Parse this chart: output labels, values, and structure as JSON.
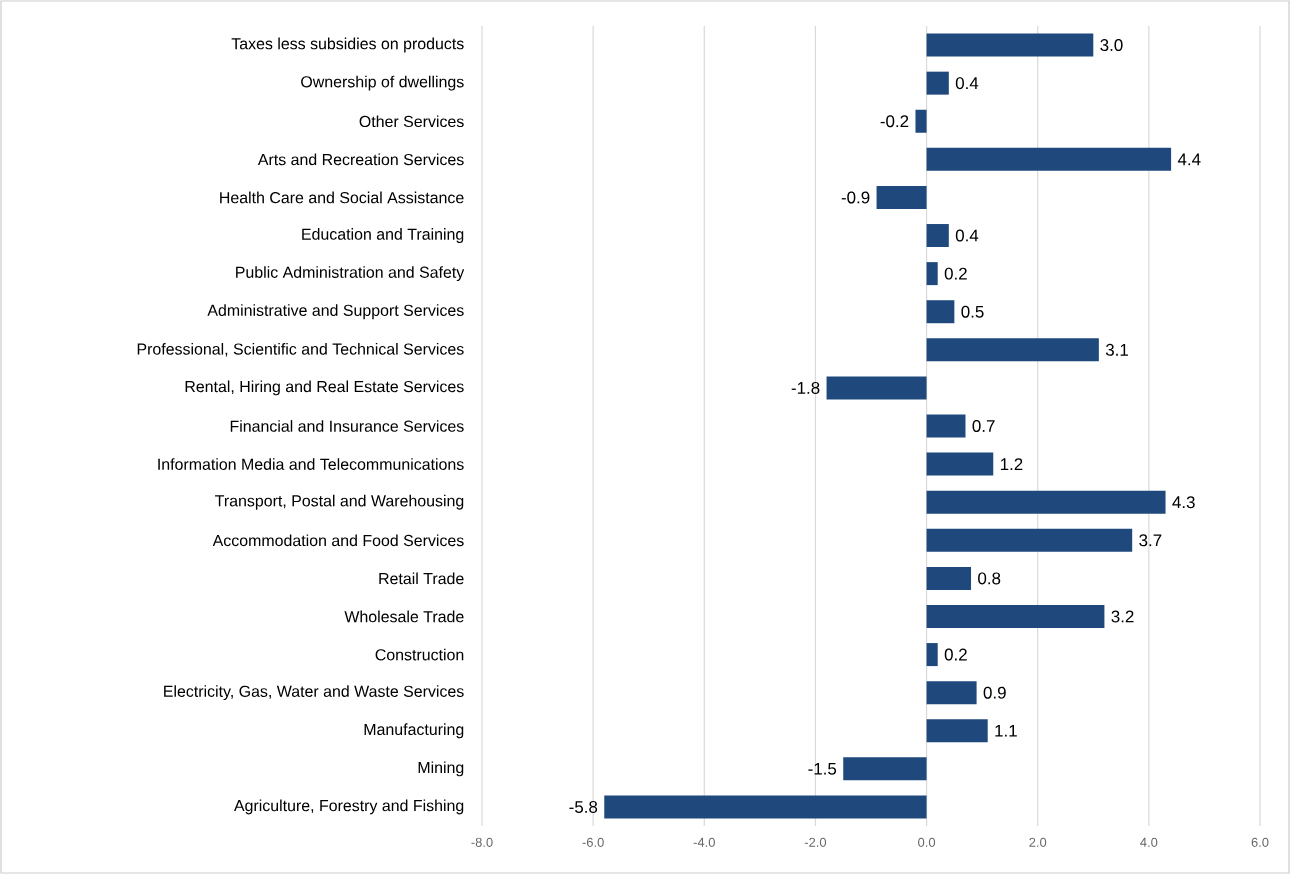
{
  "chart_data": {
    "type": "bar",
    "orientation": "horizontal",
    "categories": [
      "Taxes less subsidies on products",
      "Ownership of dwellings",
      "Other Services",
      "Arts and Recreation Services",
      "Health Care and Social Assistance",
      "Education and Training",
      "Public Administration and Safety",
      "Administrative and Support Services",
      "Professional, Scientific and Technical Services",
      "Rental, Hiring and Real Estate Services",
      "Financial and Insurance Services",
      "Information Media and Telecommunications",
      "Transport, Postal and Warehousing",
      "Accommodation and Food Services",
      "Retail Trade",
      "Wholesale Trade",
      "Construction",
      "Electricity, Gas, Water and Waste Services",
      "Manufacturing",
      "Mining",
      "Agriculture, Forestry and Fishing"
    ],
    "values": [
      3.0,
      0.4,
      -0.2,
      4.4,
      -0.9,
      0.4,
      0.2,
      0.5,
      3.1,
      -1.8,
      0.7,
      1.2,
      4.3,
      3.7,
      0.8,
      3.2,
      0.2,
      0.9,
      1.1,
      -1.5,
      -5.8
    ],
    "value_labels": [
      "3.0",
      "0.4",
      "-0.2",
      "4.4",
      "-0.9",
      "0.4",
      "0.2",
      "0.5",
      "3.1",
      "-1.8",
      "0.7",
      "1.2",
      "4.3",
      "3.7",
      "0.8",
      "3.2",
      "0.2",
      "0.9",
      "1.1",
      "-1.5",
      "-5.8"
    ],
    "color": "#1f497d",
    "xlim": [
      -8,
      6
    ],
    "xticks": [
      {
        "value": -8,
        "label": "-8.0"
      },
      {
        "value": -6,
        "label": "-6.0"
      },
      {
        "value": -4,
        "label": "-4.0"
      },
      {
        "value": -2,
        "label": "-2.0"
      },
      {
        "value": 0,
        "label": "0.0"
      },
      {
        "value": 2,
        "label": "2.0"
      },
      {
        "value": 4,
        "label": "4.0"
      },
      {
        "value": 6,
        "label": "6.0"
      }
    ],
    "grid": "x"
  }
}
